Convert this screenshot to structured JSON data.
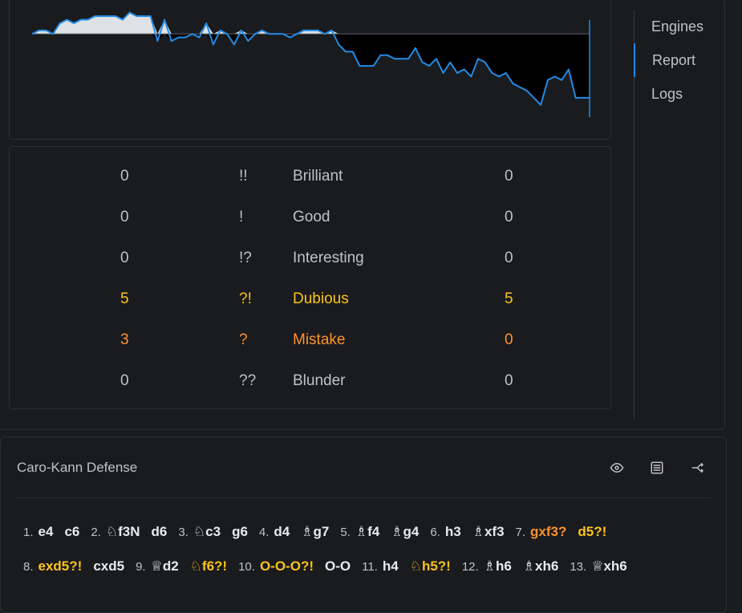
{
  "tabs": [
    {
      "label": "Engines",
      "active": false
    },
    {
      "label": "Report",
      "active": true
    },
    {
      "label": "Logs",
      "active": false
    }
  ],
  "eval_graph": {
    "evals": [
      0.0,
      0.1,
      0.1,
      0.0,
      0.3,
      0.4,
      0.3,
      0.4,
      0.4,
      0.5,
      0.5,
      0.5,
      0.5,
      0.4,
      0.6,
      0.5,
      0.5,
      0.5,
      -0.2,
      0.4,
      -0.2,
      -0.1,
      -0.1,
      0.0,
      -0.1,
      0.3,
      -0.3,
      0.1,
      0.0,
      -0.3,
      0.1,
      -0.2,
      0.0,
      0.1,
      0.0,
      0.0,
      0.0,
      -0.1,
      0.0,
      0.1,
      0.1,
      0.1,
      0.0,
      0.1,
      -0.3,
      -0.5,
      -0.5,
      -0.9,
      -0.9,
      -0.9,
      -0.6,
      -0.6,
      -0.7,
      -0.7,
      -0.7,
      -0.4,
      -0.8,
      -0.9,
      -0.7,
      -1.1,
      -0.8,
      -1.1,
      -1.0,
      -1.2,
      -0.7,
      -0.8,
      -1.1,
      -1.2,
      -1.1,
      -1.4,
      -1.5,
      -1.6,
      -1.8,
      -2.0,
      -1.3,
      -1.2,
      -1.3,
      -1.0,
      -1.8,
      -1.8,
      -1.8
    ],
    "ylim": [
      -3,
      1
    ],
    "accent": "#228be6"
  },
  "report": {
    "rows": [
      {
        "white": "0",
        "symbol": "!!",
        "label": "Brilliant",
        "black": "0",
        "kind": "brilliant"
      },
      {
        "white": "0",
        "symbol": "!",
        "label": "Good",
        "black": "0",
        "kind": "good"
      },
      {
        "white": "0",
        "symbol": "!?",
        "label": "Interesting",
        "black": "0",
        "kind": "interesting"
      },
      {
        "white": "5",
        "symbol": "?!",
        "label": "Dubious",
        "black": "5",
        "kind": "dubious"
      },
      {
        "white": "3",
        "symbol": "?",
        "label": "Mistake",
        "black": "0",
        "kind": "mistake"
      },
      {
        "white": "0",
        "symbol": "??",
        "label": "Blunder",
        "black": "0",
        "kind": "blunder"
      }
    ]
  },
  "game": {
    "opening": "Caro-Kann Defense",
    "toolbar_icons": [
      "eye-icon",
      "list-icon",
      "share-icon"
    ],
    "lines": [
      [
        {
          "n": "1."
        },
        {
          "m": "e4"
        },
        {
          "m": "c6"
        },
        {
          "n": "2."
        },
        {
          "p": "♘",
          "m": "f3N"
        },
        {
          "m": "d6"
        },
        {
          "n": "3."
        },
        {
          "p": "♘",
          "m": "c3"
        },
        {
          "m": "g6"
        },
        {
          "n": "4."
        },
        {
          "m": "d4"
        },
        {
          "p": "♗",
          "m": "g7"
        },
        {
          "n": "5."
        },
        {
          "p": "♗",
          "m": "f4"
        },
        {
          "p": "♗",
          "m": "g4"
        },
        {
          "n": "6."
        },
        {
          "m": "h3"
        },
        {
          "p": "♗",
          "m": "xf3"
        },
        {
          "n": "7."
        },
        {
          "m": "gxf3?",
          "k": "mistake"
        },
        {
          "m": "d5?!",
          "k": "dubious"
        }
      ],
      [
        {
          "n": "8."
        },
        {
          "m": "exd5?!",
          "k": "dubious"
        },
        {
          "m": "cxd5"
        },
        {
          "n": "9."
        },
        {
          "p": "♕",
          "m": "d2"
        },
        {
          "p": "♘",
          "m": "f6?!",
          "k": "dubious"
        },
        {
          "n": "10."
        },
        {
          "m": "O-O-O?!",
          "k": "dubious"
        },
        {
          "m": "O-O"
        },
        {
          "n": "11."
        },
        {
          "m": "h4"
        },
        {
          "p": "♘",
          "m": "h5?!",
          "k": "dubious"
        },
        {
          "n": "12."
        },
        {
          "p": "♗",
          "m": "h6"
        },
        {
          "p": "♗",
          "m": "xh6"
        },
        {
          "n": "13."
        },
        {
          "p": "♕",
          "m": "xh6"
        }
      ]
    ]
  }
}
